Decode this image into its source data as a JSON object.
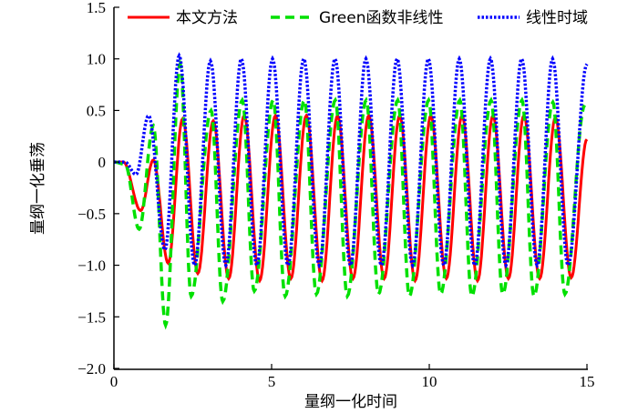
{
  "chart_data": {
    "type": "line",
    "title": "",
    "xlabel": "量纲一化时间",
    "ylabel": "量纲一化垂荡",
    "xlim": [
      0,
      15
    ],
    "ylim": [
      -2.0,
      1.5
    ],
    "xticks": [
      "0",
      "5",
      "10",
      "15"
    ],
    "xtick_values": [
      0,
      5,
      10,
      15
    ],
    "yticks": [
      "1.5",
      "1.0",
      "0.5",
      "0",
      "−0.5",
      "−1.0",
      "−1.5",
      "−2.0"
    ],
    "ytick_values": [
      1.5,
      1.0,
      0.5,
      0,
      -0.5,
      -1.0,
      -1.5,
      -2.0
    ],
    "legend_position": "top",
    "series": [
      {
        "name": "本文方法",
        "color": "#ff0000",
        "style": "solid",
        "points": [
          [
            0,
            0
          ],
          [
            0.3,
            0
          ],
          [
            0.85,
            -0.47
          ],
          [
            1.25,
            0.02
          ],
          [
            1.72,
            -0.98
          ],
          [
            2.18,
            0.42
          ],
          [
            2.66,
            -1.08
          ],
          [
            3.15,
            0.4
          ],
          [
            3.64,
            -1.13
          ],
          [
            4.13,
            0.45
          ],
          [
            4.62,
            -1.15
          ],
          [
            5.12,
            0.45
          ],
          [
            5.61,
            -1.13
          ],
          [
            6.1,
            0.45
          ],
          [
            6.6,
            -1.15
          ],
          [
            7.09,
            0.45
          ],
          [
            7.58,
            -1.13
          ],
          [
            8.08,
            0.45
          ],
          [
            8.57,
            -1.13
          ],
          [
            9.06,
            0.45
          ],
          [
            9.55,
            -1.15
          ],
          [
            10.05,
            0.45
          ],
          [
            10.54,
            -1.13
          ],
          [
            11.04,
            0.45
          ],
          [
            11.53,
            -1.15
          ],
          [
            12.02,
            0.45
          ],
          [
            12.51,
            -1.13
          ],
          [
            13.0,
            0.45
          ],
          [
            13.5,
            -1.13
          ],
          [
            14.0,
            0.43
          ],
          [
            14.5,
            -1.12
          ],
          [
            15,
            0.22
          ]
        ]
      },
      {
        "name": "Green函数非线性",
        "color": "#00e000",
        "style": "dashed",
        "points": [
          [
            0,
            0
          ],
          [
            0.35,
            -0.02
          ],
          [
            0.8,
            -0.65
          ],
          [
            1.25,
            0.35
          ],
          [
            1.64,
            -1.58
          ],
          [
            2.1,
            0.95
          ],
          [
            2.45,
            -1.3
          ],
          [
            3.08,
            0.5
          ],
          [
            3.45,
            -1.35
          ],
          [
            4.07,
            0.6
          ],
          [
            4.45,
            -1.25
          ],
          [
            5.05,
            0.6
          ],
          [
            5.43,
            -1.3
          ],
          [
            6.04,
            0.6
          ],
          [
            6.42,
            -1.28
          ],
          [
            7.02,
            0.6
          ],
          [
            7.4,
            -1.3
          ],
          [
            8.0,
            0.6
          ],
          [
            8.39,
            -1.28
          ],
          [
            9.0,
            0.6
          ],
          [
            9.37,
            -1.3
          ],
          [
            9.98,
            0.6
          ],
          [
            10.36,
            -1.28
          ],
          [
            10.97,
            0.6
          ],
          [
            11.35,
            -1.3
          ],
          [
            11.96,
            0.6
          ],
          [
            12.33,
            -1.28
          ],
          [
            12.94,
            0.6
          ],
          [
            13.32,
            -1.3
          ],
          [
            13.92,
            0.58
          ],
          [
            14.3,
            -1.28
          ],
          [
            14.93,
            0.55
          ]
        ]
      },
      {
        "name": "线性时域",
        "color": "#0000ff",
        "style": "dotted",
        "points": [
          [
            0,
            0
          ],
          [
            0.35,
            0
          ],
          [
            0.7,
            -0.12
          ],
          [
            1.1,
            0.45
          ],
          [
            1.62,
            -0.85
          ],
          [
            2.07,
            1.03
          ],
          [
            2.56,
            -1.0
          ],
          [
            3.06,
            0.98
          ],
          [
            3.55,
            -1.0
          ],
          [
            4.04,
            1.0
          ],
          [
            4.53,
            -1.0
          ],
          [
            5.03,
            1.0
          ],
          [
            5.52,
            -1.0
          ],
          [
            6.02,
            1.0
          ],
          [
            6.51,
            -1.0
          ],
          [
            7.01,
            1.0
          ],
          [
            7.5,
            -1.0
          ],
          [
            7.99,
            1.0
          ],
          [
            8.48,
            -1.0
          ],
          [
            8.98,
            1.0
          ],
          [
            9.47,
            -1.0
          ],
          [
            9.97,
            1.0
          ],
          [
            10.46,
            -1.0
          ],
          [
            10.95,
            1.0
          ],
          [
            11.44,
            -1.0
          ],
          [
            11.94,
            1.0
          ],
          [
            12.43,
            -1.0
          ],
          [
            12.93,
            1.0
          ],
          [
            13.42,
            -1.0
          ],
          [
            13.91,
            1.0
          ],
          [
            14.4,
            -1.0
          ],
          [
            15,
            0.95
          ]
        ]
      }
    ]
  }
}
